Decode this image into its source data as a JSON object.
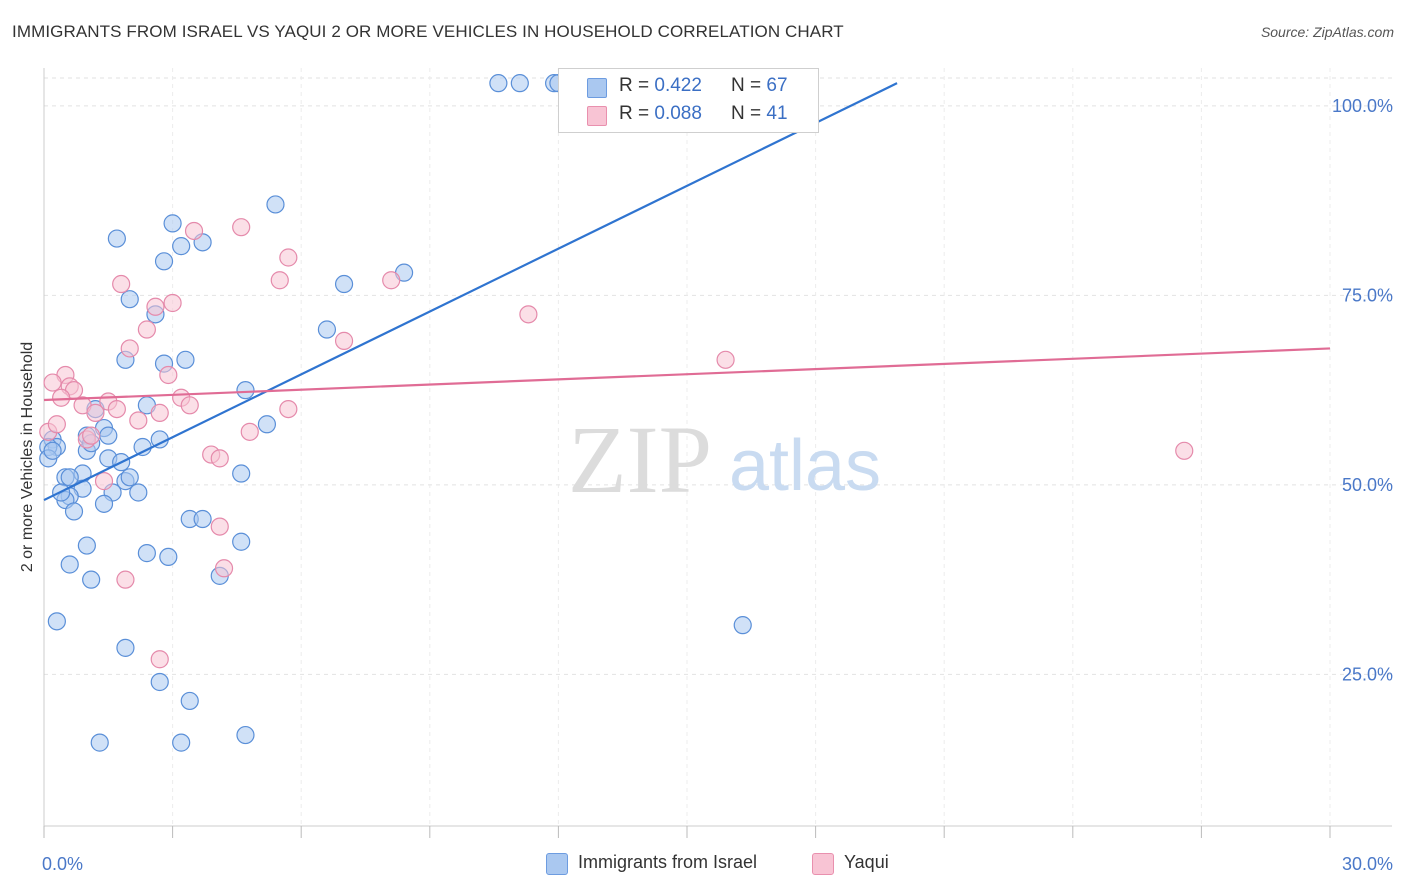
{
  "header": {
    "title": "IMMIGRANTS FROM ISRAEL VS YAQUI 2 OR MORE VEHICLES IN HOUSEHOLD CORRELATION CHART",
    "source": "Source: ZipAtlas.com"
  },
  "watermark": {
    "zip": "ZIP",
    "atlas": "atlas"
  },
  "legend": {
    "rows": [
      {
        "r_label": "R = ",
        "r_value": "0.422",
        "n_label": "N = ",
        "n_value": "67",
        "color": "#aac8f0",
        "border": "#6d9ce0"
      },
      {
        "r_label": "R = ",
        "r_value": "0.088",
        "n_label": "N = ",
        "n_value": "41",
        "color": "#f8c4d4",
        "border": "#e990ae"
      }
    ]
  },
  "bottom_legend": {
    "items": [
      {
        "label": "Immigrants from Israel",
        "color": "#aac8f0",
        "border": "#6d9ce0"
      },
      {
        "label": "Yaqui",
        "color": "#f8c4d4",
        "border": "#e990ae"
      }
    ]
  },
  "chart_data": {
    "type": "scatter",
    "title": "IMMIGRANTS FROM ISRAEL VS YAQUI 2 OR MORE VEHICLES IN HOUSEHOLD CORRELATION CHART",
    "xlabel": "",
    "ylabel": "2 or more Vehicles in Household",
    "xlim": [
      0,
      30
    ],
    "ylim": [
      5,
      105
    ],
    "x_ticks_labeled": [
      {
        "value": 0,
        "label": "0.0%"
      },
      {
        "value": 30,
        "label": "30.0%"
      }
    ],
    "y_ticks": [
      {
        "value": 25,
        "label": "25.0%"
      },
      {
        "value": 50,
        "label": "50.0%"
      },
      {
        "value": 75,
        "label": "75.0%"
      },
      {
        "value": 100,
        "label": "100.0%"
      }
    ],
    "grid": true,
    "legend_position": "top-center",
    "series": [
      {
        "name": "Immigrants from Israel",
        "color": "#aac8f0",
        "stroke": "#5a8fd8",
        "line_color": "#2f74d0",
        "trend": {
          "x0": 0,
          "y0": 48,
          "x1": 19.9,
          "y1": 103
        },
        "points": [
          [
            10.6,
            103
          ],
          [
            11.1,
            103
          ],
          [
            11.9,
            103
          ],
          [
            12.0,
            103
          ],
          [
            5.4,
            87
          ],
          [
            3.0,
            84.5
          ],
          [
            3.7,
            82
          ],
          [
            1.7,
            82.5
          ],
          [
            3.2,
            81.5
          ],
          [
            2.8,
            79.5
          ],
          [
            8.4,
            78
          ],
          [
            7.0,
            76.5
          ],
          [
            2.0,
            74.5
          ],
          [
            2.6,
            72.5
          ],
          [
            6.6,
            70.5
          ],
          [
            1.9,
            66.5
          ],
          [
            2.8,
            66
          ],
          [
            3.3,
            66.5
          ],
          [
            4.7,
            62.5
          ],
          [
            2.4,
            60.5
          ],
          [
            1.2,
            60
          ],
          [
            5.2,
            58
          ],
          [
            1.4,
            57.5
          ],
          [
            1.0,
            56.5
          ],
          [
            1.5,
            56.5
          ],
          [
            2.7,
            56
          ],
          [
            0.2,
            56
          ],
          [
            0.3,
            55
          ],
          [
            0.1,
            55
          ],
          [
            1.0,
            54.5
          ],
          [
            2.3,
            55
          ],
          [
            1.5,
            53.5
          ],
          [
            1.8,
            53
          ],
          [
            0.5,
            51
          ],
          [
            0.9,
            51.5
          ],
          [
            0.6,
            51
          ],
          [
            4.6,
            51.5
          ],
          [
            1.9,
            50.5
          ],
          [
            0.9,
            49.5
          ],
          [
            1.6,
            49
          ],
          [
            2.2,
            49
          ],
          [
            0.6,
            48.5
          ],
          [
            0.5,
            48
          ],
          [
            1.4,
            47.5
          ],
          [
            0.7,
            46.5
          ],
          [
            3.4,
            45.5
          ],
          [
            3.7,
            45.5
          ],
          [
            1.0,
            42
          ],
          [
            4.6,
            42.5
          ],
          [
            2.4,
            41
          ],
          [
            2.9,
            40.5
          ],
          [
            0.6,
            39.5
          ],
          [
            1.1,
            37.5
          ],
          [
            4.1,
            38
          ],
          [
            16.3,
            31.5
          ],
          [
            0.3,
            32
          ],
          [
            1.9,
            28.5
          ],
          [
            2.7,
            24
          ],
          [
            3.4,
            21.5
          ],
          [
            1.3,
            16
          ],
          [
            3.2,
            16
          ],
          [
            4.7,
            17
          ],
          [
            0.1,
            53.5
          ],
          [
            0.2,
            54.5
          ],
          [
            0.4,
            49
          ],
          [
            2.0,
            51
          ],
          [
            1.1,
            55.5
          ]
        ]
      },
      {
        "name": "Yaqui",
        "color": "#f8c4d4",
        "stroke": "#e58aab",
        "line_color": "#e06c95",
        "trend": {
          "x0": 0,
          "y0": 61.2,
          "x1": 30,
          "y1": 68.0
        },
        "points": [
          [
            4.6,
            84
          ],
          [
            3.5,
            83.5
          ],
          [
            5.7,
            80
          ],
          [
            5.5,
            77
          ],
          [
            8.1,
            77
          ],
          [
            1.8,
            76.5
          ],
          [
            2.6,
            73.5
          ],
          [
            3.0,
            74
          ],
          [
            11.3,
            72.5
          ],
          [
            2.4,
            70.5
          ],
          [
            7.0,
            69
          ],
          [
            2.0,
            68
          ],
          [
            15.9,
            66.5
          ],
          [
            0.5,
            64.5
          ],
          [
            2.9,
            64.5
          ],
          [
            0.2,
            63.5
          ],
          [
            0.6,
            63
          ],
          [
            0.7,
            62.5
          ],
          [
            0.4,
            61.5
          ],
          [
            1.5,
            61
          ],
          [
            3.2,
            61.5
          ],
          [
            0.9,
            60.5
          ],
          [
            1.7,
            60
          ],
          [
            3.4,
            60.5
          ],
          [
            5.7,
            60
          ],
          [
            2.7,
            59.5
          ],
          [
            1.2,
            59.5
          ],
          [
            2.2,
            58.5
          ],
          [
            4.8,
            57
          ],
          [
            1.0,
            56
          ],
          [
            26.6,
            54.5
          ],
          [
            3.9,
            54
          ],
          [
            4.1,
            53.5
          ],
          [
            1.4,
            50.5
          ],
          [
            4.1,
            44.5
          ],
          [
            4.2,
            39
          ],
          [
            1.9,
            37.5
          ],
          [
            2.7,
            27
          ],
          [
            0.1,
            57
          ],
          [
            0.3,
            58
          ],
          [
            1.1,
            56.5
          ]
        ]
      }
    ]
  }
}
